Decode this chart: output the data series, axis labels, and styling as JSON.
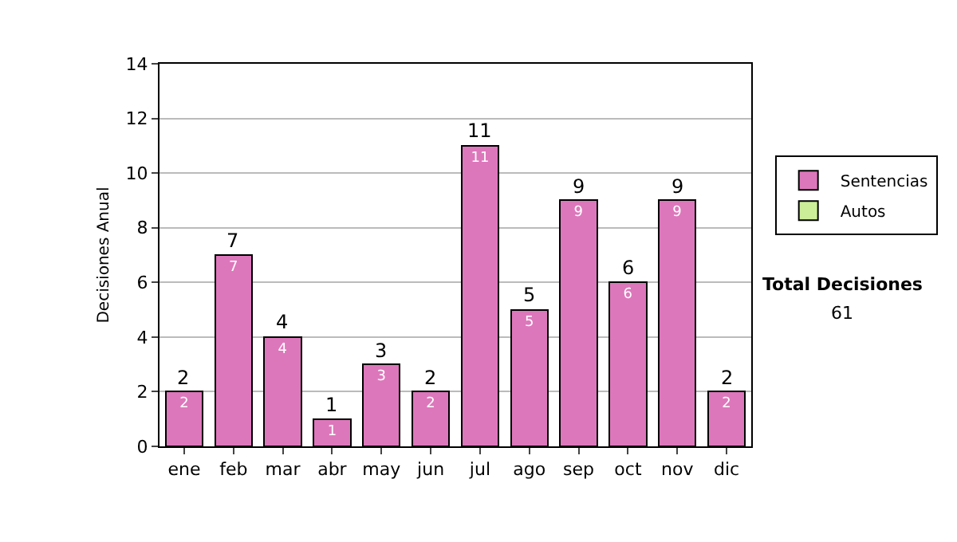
{
  "chart_data": {
    "type": "bar",
    "ylabel": "Decisiones Anual",
    "categories": [
      "ene",
      "feb",
      "mar",
      "abr",
      "may",
      "jun",
      "jul",
      "ago",
      "sep",
      "oct",
      "nov",
      "dic"
    ],
    "series": [
      {
        "name": "Sentencias",
        "color": "#dd77bb",
        "values": [
          2,
          7,
          4,
          1,
          3,
          2,
          11,
          5,
          9,
          6,
          9,
          2
        ]
      },
      {
        "name": "Autos",
        "color": "#ccee99",
        "values": [
          null,
          null,
          null,
          null,
          null,
          null,
          null,
          null,
          null,
          null,
          null,
          null
        ]
      }
    ],
    "stacked": true,
    "data_labels": true,
    "totals": [
      "2",
      "7",
      "4",
      "1",
      "3",
      "2",
      "11",
      "5",
      "9",
      "6",
      "9",
      "2"
    ],
    "ylim": [
      0,
      14
    ],
    "yticks": [
      0,
      2,
      4,
      6,
      8,
      10,
      12,
      14
    ],
    "grid": "y",
    "legend": "right",
    "annotations": [
      "Total Decisiones",
      "61"
    ]
  }
}
